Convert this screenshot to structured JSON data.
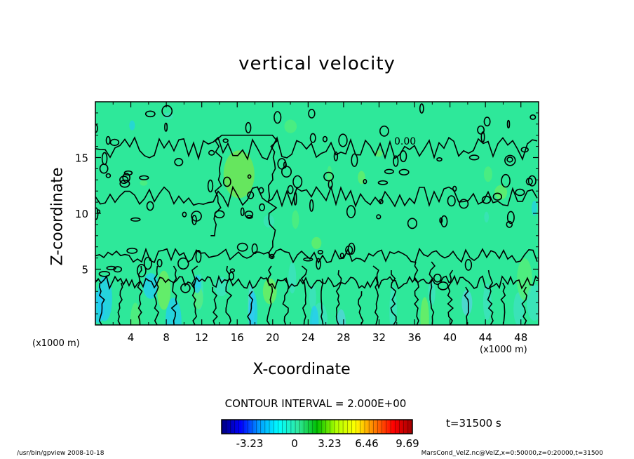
{
  "chart_data": {
    "type": "heatmap",
    "title": "vertical velocity",
    "xlabel": "X-coordinate",
    "ylabel": "Z-coordinate",
    "x_unit_left": "(x1000 m)",
    "x_unit_right": "(x1000 m)",
    "xlim": [
      0,
      50
    ],
    "ylim": [
      0,
      20
    ],
    "x_ticks": [
      "4",
      "8",
      "12",
      "16",
      "20",
      "24",
      "28",
      "32",
      "36",
      "40",
      "44",
      "48"
    ],
    "y_ticks": [
      "5",
      "10",
      "15"
    ],
    "contour_label": "0.00",
    "contour_interval_text": "CONTOUR INTERVAL = 2.000E+00",
    "colorbar": {
      "tick_labels": [
        "-3.23",
        "0",
        "3.23",
        "6.46",
        "9.69"
      ],
      "colors": [
        "#000080",
        "#0000ff",
        "#00a0ff",
        "#00ffff",
        "#30e8a0",
        "#00c000",
        "#b0ff00",
        "#ffff00",
        "#ff8000",
        "#ff0000",
        "#a00000"
      ]
    },
    "time_label": "t=31500 s",
    "field_color": "#2ee89a",
    "grid": false
  },
  "footer": {
    "left": "/usr/bin/gpview   2008-10-18",
    "right": "MarsCond_VelZ.nc@VelZ,x=0:50000,z=0:20000,t=31500"
  }
}
